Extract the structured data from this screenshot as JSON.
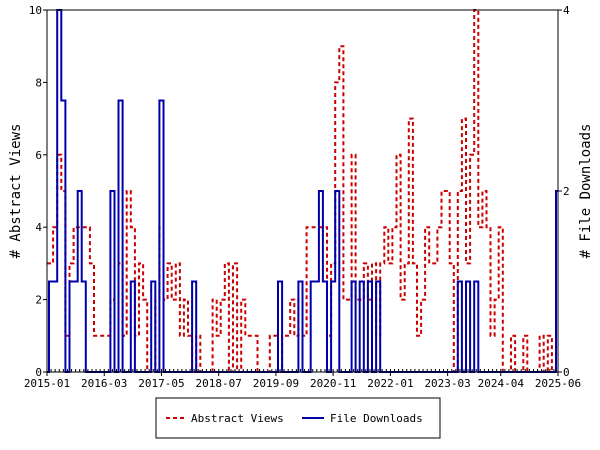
{
  "chart_data": {
    "type": "line",
    "title": "",
    "xlabel": "",
    "ylabel": "# Abstract Views",
    "y2label": "# File Downloads",
    "x_ticks": [
      "2015-01",
      "2016-03",
      "2017-05",
      "2018-07",
      "2019-09",
      "2020-11",
      "2022-01",
      "2023-03",
      "2024-04",
      "2025-06"
    ],
    "x_range": [
      "2015-01",
      "2025-06"
    ],
    "ylim": [
      0,
      10
    ],
    "y_ticks": [
      0,
      2,
      4,
      6,
      8,
      10
    ],
    "y2lim": [
      0,
      4
    ],
    "y2_ticks": [
      0,
      2,
      4
    ],
    "grid": false,
    "legend_position": "bottom-center",
    "series": [
      {
        "name": "Abstract Views",
        "axis": "left",
        "color": "#cc0000",
        "style": "dashed",
        "points": [
          [
            "2015-01",
            3
          ],
          [
            "2015-02",
            3
          ],
          [
            "2015-03",
            4
          ],
          [
            "2015-04",
            6
          ],
          [
            "2015-05",
            5
          ],
          [
            "2015-06",
            1
          ],
          [
            "2015-07",
            3
          ],
          [
            "2015-08",
            4
          ],
          [
            "2015-09",
            4
          ],
          [
            "2015-10",
            4
          ],
          [
            "2015-11",
            4
          ],
          [
            "2015-12",
            3
          ],
          [
            "2016-01",
            1
          ],
          [
            "2016-02",
            1
          ],
          [
            "2016-03",
            1
          ],
          [
            "2016-04",
            1
          ],
          [
            "2016-05",
            2
          ],
          [
            "2016-06",
            4
          ],
          [
            "2016-07",
            3
          ],
          [
            "2016-08",
            1
          ],
          [
            "2016-09",
            5
          ],
          [
            "2016-10",
            4
          ],
          [
            "2016-11",
            1
          ],
          [
            "2016-12",
            3
          ],
          [
            "2017-01",
            2
          ],
          [
            "2017-02",
            0
          ],
          [
            "2017-03",
            0
          ],
          [
            "2017-04",
            2
          ],
          [
            "2017-05",
            4
          ],
          [
            "2017-06",
            2
          ],
          [
            "2017-07",
            3
          ],
          [
            "2017-08",
            2
          ],
          [
            "2017-09",
            3
          ],
          [
            "2017-10",
            1
          ],
          [
            "2017-11",
            2
          ],
          [
            "2017-12",
            1
          ],
          [
            "2018-01",
            0
          ],
          [
            "2018-02",
            1
          ],
          [
            "2018-03",
            0
          ],
          [
            "2018-04",
            0
          ],
          [
            "2018-05",
            0
          ],
          [
            "2018-06",
            2
          ],
          [
            "2018-07",
            1
          ],
          [
            "2018-08",
            2
          ],
          [
            "2018-09",
            3
          ],
          [
            "2018-10",
            0
          ],
          [
            "2018-11",
            3
          ],
          [
            "2018-12",
            0
          ],
          [
            "2019-01",
            2
          ],
          [
            "2019-02",
            1
          ],
          [
            "2019-03",
            1
          ],
          [
            "2019-04",
            1
          ],
          [
            "2019-05",
            0
          ],
          [
            "2019-06",
            0
          ],
          [
            "2019-07",
            0
          ],
          [
            "2019-08",
            1
          ],
          [
            "2019-09",
            1
          ],
          [
            "2019-10",
            0
          ],
          [
            "2019-11",
            1
          ],
          [
            "2019-12",
            1
          ],
          [
            "2020-01",
            2
          ],
          [
            "2020-02",
            1
          ],
          [
            "2020-03",
            2
          ],
          [
            "2020-04",
            1
          ],
          [
            "2020-05",
            4
          ],
          [
            "2020-06",
            4
          ],
          [
            "2020-07",
            4
          ],
          [
            "2020-08",
            4
          ],
          [
            "2020-09",
            4
          ],
          [
            "2020-10",
            1
          ],
          [
            "2020-11",
            3
          ],
          [
            "2020-12",
            8
          ],
          [
            "2021-01",
            9
          ],
          [
            "2021-02",
            2
          ],
          [
            "2021-03",
            2
          ],
          [
            "2021-04",
            6
          ],
          [
            "2021-05",
            2
          ],
          [
            "2021-06",
            2
          ],
          [
            "2021-07",
            3
          ],
          [
            "2021-08",
            2
          ],
          [
            "2021-09",
            3
          ],
          [
            "2021-10",
            1
          ],
          [
            "2021-11",
            3
          ],
          [
            "2021-12",
            4
          ],
          [
            "2022-01",
            3
          ],
          [
            "2022-02",
            4
          ],
          [
            "2022-03",
            6
          ],
          [
            "2022-04",
            2
          ],
          [
            "2022-05",
            3
          ],
          [
            "2022-06",
            7
          ],
          [
            "2022-07",
            3
          ],
          [
            "2022-08",
            1
          ],
          [
            "2022-09",
            2
          ],
          [
            "2022-10",
            4
          ],
          [
            "2022-11",
            3
          ],
          [
            "2022-12",
            3
          ],
          [
            "2023-01",
            4
          ],
          [
            "2023-02",
            5
          ],
          [
            "2023-03",
            5
          ],
          [
            "2023-04",
            3
          ],
          [
            "2023-05",
            0
          ],
          [
            "2023-06",
            5
          ],
          [
            "2023-07",
            7
          ],
          [
            "2023-08",
            3
          ],
          [
            "2023-09",
            6
          ],
          [
            "2023-10",
            10
          ],
          [
            "2023-11",
            4
          ],
          [
            "2023-12",
            5
          ],
          [
            "2024-01",
            4
          ],
          [
            "2024-02",
            1
          ],
          [
            "2024-03",
            2
          ],
          [
            "2024-04",
            4
          ],
          [
            "2024-05",
            0
          ],
          [
            "2024-06",
            0
          ],
          [
            "2024-07",
            1
          ],
          [
            "2024-08",
            0
          ],
          [
            "2024-09",
            0
          ],
          [
            "2024-10",
            1
          ],
          [
            "2024-11",
            0
          ],
          [
            "2024-12",
            0
          ],
          [
            "2025-01",
            0
          ],
          [
            "2025-02",
            1
          ],
          [
            "2025-03",
            0
          ],
          [
            "2025-04",
            1
          ],
          [
            "2025-05",
            0
          ],
          [
            "2025-06",
            2
          ]
        ]
      },
      {
        "name": "File Downloads",
        "axis": "right",
        "color": "#0000aa",
        "style": "solid",
        "points": [
          [
            "2015-01",
            0
          ],
          [
            "2015-02",
            1
          ],
          [
            "2015-03",
            1
          ],
          [
            "2015-04",
            4
          ],
          [
            "2015-05",
            3
          ],
          [
            "2015-06",
            0
          ],
          [
            "2015-07",
            1
          ],
          [
            "2015-08",
            1
          ],
          [
            "2015-09",
            2
          ],
          [
            "2015-10",
            1
          ],
          [
            "2015-11",
            0
          ],
          [
            "2015-12",
            0
          ],
          [
            "2016-01",
            0
          ],
          [
            "2016-02",
            0
          ],
          [
            "2016-03",
            0
          ],
          [
            "2016-04",
            0
          ],
          [
            "2016-05",
            2
          ],
          [
            "2016-06",
            0
          ],
          [
            "2016-07",
            3
          ],
          [
            "2016-08",
            0
          ],
          [
            "2016-09",
            0
          ],
          [
            "2016-10",
            1
          ],
          [
            "2016-11",
            0
          ],
          [
            "2016-12",
            0
          ],
          [
            "2017-01",
            0
          ],
          [
            "2017-02",
            0
          ],
          [
            "2017-03",
            1
          ],
          [
            "2017-04",
            0
          ],
          [
            "2017-05",
            3
          ],
          [
            "2017-06",
            0
          ],
          [
            "2017-07",
            0
          ],
          [
            "2017-08",
            0
          ],
          [
            "2017-09",
            0
          ],
          [
            "2017-10",
            0
          ],
          [
            "2017-11",
            0
          ],
          [
            "2017-12",
            0
          ],
          [
            "2018-01",
            1
          ],
          [
            "2018-02",
            0
          ],
          [
            "2018-03",
            0
          ],
          [
            "2018-04",
            0
          ],
          [
            "2018-05",
            0
          ],
          [
            "2018-06",
            0
          ],
          [
            "2018-07",
            0
          ],
          [
            "2018-08",
            0
          ],
          [
            "2018-09",
            0
          ],
          [
            "2018-10",
            0
          ],
          [
            "2018-11",
            0
          ],
          [
            "2018-12",
            0
          ],
          [
            "2019-01",
            0
          ],
          [
            "2019-02",
            0
          ],
          [
            "2019-03",
            0
          ],
          [
            "2019-04",
            0
          ],
          [
            "2019-05",
            0
          ],
          [
            "2019-06",
            0
          ],
          [
            "2019-07",
            0
          ],
          [
            "2019-08",
            0
          ],
          [
            "2019-09",
            0
          ],
          [
            "2019-10",
            1
          ],
          [
            "2019-11",
            0
          ],
          [
            "2019-12",
            0
          ],
          [
            "2020-01",
            0
          ],
          [
            "2020-02",
            0
          ],
          [
            "2020-03",
            1
          ],
          [
            "2020-04",
            0
          ],
          [
            "2020-05",
            0
          ],
          [
            "2020-06",
            1
          ],
          [
            "2020-07",
            1
          ],
          [
            "2020-08",
            2
          ],
          [
            "2020-09",
            1
          ],
          [
            "2020-10",
            0
          ],
          [
            "2020-11",
            1
          ],
          [
            "2020-12",
            2
          ],
          [
            "2021-01",
            0
          ],
          [
            "2021-02",
            0
          ],
          [
            "2021-03",
            0
          ],
          [
            "2021-04",
            1
          ],
          [
            "2021-05",
            0
          ],
          [
            "2021-06",
            1
          ],
          [
            "2021-07",
            0
          ],
          [
            "2021-08",
            1
          ],
          [
            "2021-09",
            0
          ],
          [
            "2021-10",
            1
          ],
          [
            "2021-11",
            0
          ],
          [
            "2021-12",
            0
          ],
          [
            "2022-01",
            0
          ],
          [
            "2022-02",
            0
          ],
          [
            "2022-03",
            0
          ],
          [
            "2022-04",
            0
          ],
          [
            "2022-05",
            0
          ],
          [
            "2022-06",
            0
          ],
          [
            "2022-07",
            0
          ],
          [
            "2022-08",
            0
          ],
          [
            "2022-09",
            0
          ],
          [
            "2022-10",
            0
          ],
          [
            "2022-11",
            0
          ],
          [
            "2022-12",
            0
          ],
          [
            "2023-01",
            0
          ],
          [
            "2023-02",
            0
          ],
          [
            "2023-03",
            0
          ],
          [
            "2023-04",
            0
          ],
          [
            "2023-05",
            0
          ],
          [
            "2023-06",
            1
          ],
          [
            "2023-07",
            0
          ],
          [
            "2023-08",
            1
          ],
          [
            "2023-09",
            0
          ],
          [
            "2023-10",
            1
          ],
          [
            "2023-11",
            0
          ],
          [
            "2023-12",
            0
          ],
          [
            "2024-01",
            0
          ],
          [
            "2024-02",
            0
          ],
          [
            "2024-03",
            0
          ],
          [
            "2024-04",
            0
          ],
          [
            "2024-05",
            0
          ],
          [
            "2024-06",
            0
          ],
          [
            "2024-07",
            0
          ],
          [
            "2024-08",
            0
          ],
          [
            "2024-09",
            0
          ],
          [
            "2024-10",
            0
          ],
          [
            "2024-11",
            0
          ],
          [
            "2024-12",
            0
          ],
          [
            "2025-01",
            0
          ],
          [
            "2025-02",
            0
          ],
          [
            "2025-03",
            0
          ],
          [
            "2025-04",
            0
          ],
          [
            "2025-05",
            0
          ],
          [
            "2025-06",
            2
          ]
        ]
      }
    ]
  }
}
